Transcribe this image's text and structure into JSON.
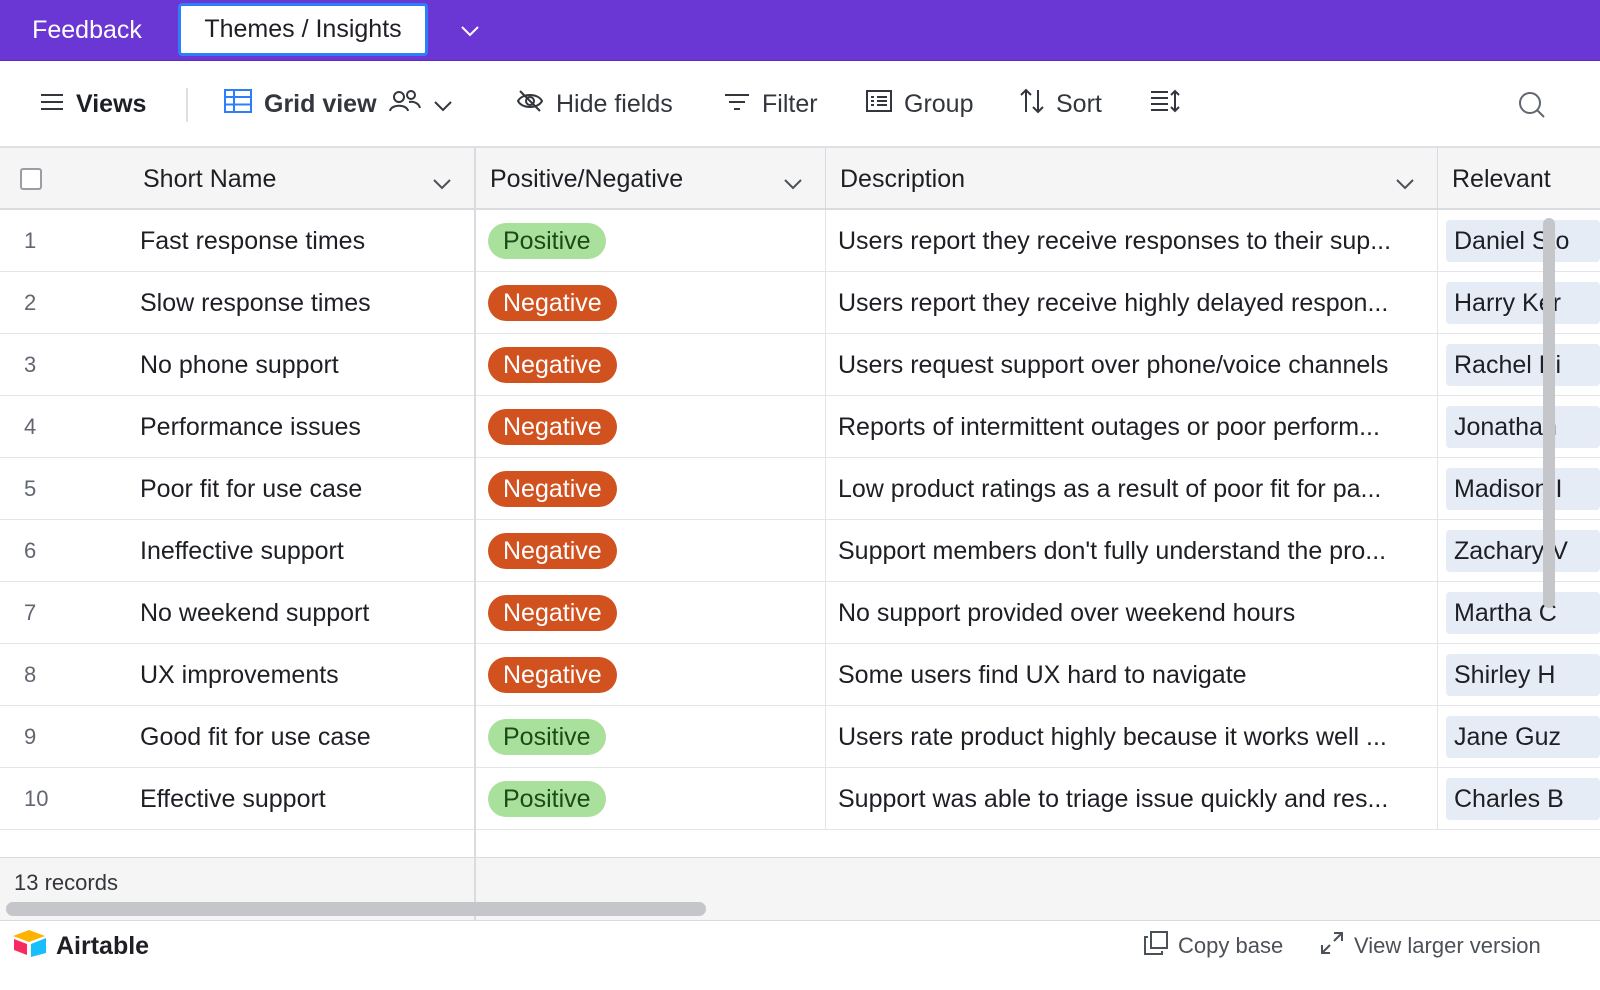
{
  "tabs": {
    "inactive": "Feedback",
    "active": "Themes / Insights"
  },
  "toolbar": {
    "views": "Views",
    "grid_view": "Grid view",
    "hide_fields": "Hide fields",
    "filter": "Filter",
    "group": "Group",
    "sort": "Sort"
  },
  "columns": {
    "short_name": "Short Name",
    "pos_neg": "Positive/Negative",
    "description": "Description",
    "relevant": "Relevant"
  },
  "rows": [
    {
      "num": "1",
      "name": "Fast response times",
      "sentiment": "Positive",
      "description": "Users report they receive responses to their sup...",
      "relevant": "Daniel Sto"
    },
    {
      "num": "2",
      "name": "Slow response times",
      "sentiment": "Negative",
      "description": "Users report they receive highly delayed respon...",
      "relevant": "Harry Ker"
    },
    {
      "num": "3",
      "name": "No phone support",
      "sentiment": "Negative",
      "description": "Users request support over phone/voice channels",
      "relevant": "Rachel Pi"
    },
    {
      "num": "4",
      "name": "Performance issues",
      "sentiment": "Negative",
      "description": "Reports of intermittent outages or poor perform...",
      "relevant": "Jonathan"
    },
    {
      "num": "5",
      "name": "Poor fit for use case",
      "sentiment": "Negative",
      "description": "Low product ratings as a result of poor fit for pa...",
      "relevant": "Madison I"
    },
    {
      "num": "6",
      "name": "Ineffective support",
      "sentiment": "Negative",
      "description": "Support members don't fully understand the pro...",
      "relevant": "Zachary V"
    },
    {
      "num": "7",
      "name": "No weekend support",
      "sentiment": "Negative",
      "description": "No support provided over weekend hours",
      "relevant": "Martha C"
    },
    {
      "num": "8",
      "name": "UX improvements",
      "sentiment": "Negative",
      "description": "Some users find UX hard to navigate",
      "relevant": "Shirley H"
    },
    {
      "num": "9",
      "name": "Good fit for use case",
      "sentiment": "Positive",
      "description": "Users rate product highly because it works well ...",
      "relevant": "Jane Guz"
    },
    {
      "num": "10",
      "name": "Effective support",
      "sentiment": "Positive",
      "description": "Support was able to triage issue quickly and res...",
      "relevant": "Charles B"
    }
  ],
  "footer": {
    "records": "13 records",
    "brand": "Airtable",
    "copy_base": "Copy base",
    "view_larger": "View larger version"
  },
  "colors": {
    "tabbar": "#6a36d4",
    "active_tab_border": "#2d7ff9",
    "positive_pill": "#a9e19c",
    "negative_pill": "#d1511f"
  }
}
